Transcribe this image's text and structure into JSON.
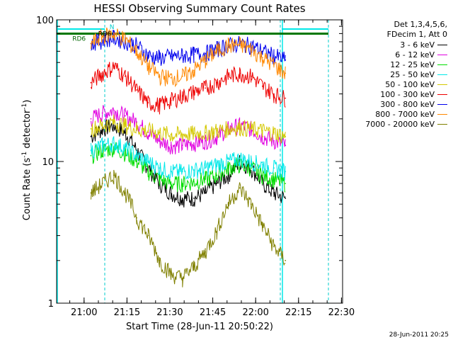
{
  "chart_data": {
    "type": "line",
    "title": "HESSI Observing Summary Count Rates",
    "xlabel": "Start Time (28-Jun-11 20:50:22)",
    "ylabel_text": "Count Rate (s",
    "ylabel_sup": "-1",
    "ylabel_tail": " detector",
    "ylabel_sup2": "-1",
    "ylabel_end": ")",
    "y_scale": "log",
    "ylim": [
      1,
      100
    ],
    "xlim_minutes": [
      0,
      100
    ],
    "x_ticks": [
      {
        "label": "21:00",
        "t": 9.6
      },
      {
        "label": "21:15",
        "t": 24.6
      },
      {
        "label": "21:30",
        "t": 39.6
      },
      {
        "label": "21:45",
        "t": 54.6
      },
      {
        "label": "22:00",
        "t": 69.6
      },
      {
        "label": "22:15",
        "t": 84.6
      },
      {
        "label": "22:30",
        "t": 99.6
      }
    ],
    "y_ticks": [
      {
        "label": "1",
        "v": 1
      },
      {
        "label": "10",
        "v": 10
      },
      {
        "label": "100",
        "v": 100
      }
    ],
    "legend_header": [
      "Det 1,3,4,5,6,",
      "FDecim 1, Att 0"
    ],
    "legend_placement": "right",
    "series": [
      {
        "name": "3 - 6 keV",
        "color": "#000000",
        "x": [
          12,
          16,
          20,
          24,
          28,
          32,
          36,
          40,
          44,
          48,
          52,
          56,
          60,
          64,
          68,
          72,
          76,
          80
        ],
        "values": [
          15,
          17,
          18,
          16,
          12,
          9,
          7,
          6,
          5.5,
          5.5,
          6,
          7,
          8,
          10,
          9,
          7,
          6,
          5.5
        ]
      },
      {
        "name": "6 - 12 keV",
        "color": "#e000e0",
        "x": [
          12,
          16,
          20,
          24,
          28,
          32,
          36,
          40,
          44,
          48,
          52,
          56,
          60,
          64,
          68,
          72,
          76,
          80
        ],
        "values": [
          20,
          22,
          23,
          21,
          19,
          16,
          14,
          13,
          13,
          13.5,
          14,
          15,
          17,
          18,
          17,
          15,
          14,
          13
        ]
      },
      {
        "name": "12 - 25 keV",
        "color": "#00dd00",
        "x": [
          12,
          16,
          20,
          24,
          28,
          32,
          36,
          40,
          44,
          48,
          52,
          56,
          60,
          64,
          68,
          72,
          76,
          80
        ],
        "values": [
          11,
          12,
          12.5,
          11.5,
          10,
          8.5,
          7.5,
          7,
          7,
          7.2,
          7.5,
          8,
          9,
          9.5,
          9,
          8,
          7.5,
          7
        ]
      },
      {
        "name": "25 - 50 keV",
        "color": "#00e8e8",
        "x": [
          12,
          16,
          20,
          24,
          28,
          32,
          36,
          40,
          44,
          48,
          52,
          56,
          60,
          64,
          68,
          72,
          76,
          80
        ],
        "values": [
          12,
          13,
          13.5,
          12.5,
          11,
          10,
          9,
          8.5,
          8.5,
          8.7,
          9,
          9.5,
          10,
          10.5,
          10,
          9.5,
          9,
          8.5
        ]
      },
      {
        "name": "50 - 100 keV",
        "color": "#d4c800",
        "x": [
          12,
          16,
          20,
          24,
          28,
          32,
          36,
          40,
          44,
          48,
          52,
          56,
          60,
          64,
          68,
          72,
          76,
          80
        ],
        "values": [
          17,
          18,
          19,
          18,
          17,
          16.5,
          16,
          15.5,
          15.5,
          15.8,
          16,
          16.5,
          17,
          17.5,
          17,
          16.5,
          16,
          15
        ]
      },
      {
        "name": "100 - 300 keV",
        "color": "#ee0000",
        "x": [
          12,
          16,
          20,
          24,
          28,
          32,
          36,
          40,
          44,
          48,
          52,
          56,
          60,
          64,
          68,
          72,
          76,
          80
        ],
        "values": [
          36,
          42,
          47,
          40,
          32,
          26,
          25,
          27,
          29,
          31,
          33,
          36,
          40,
          42,
          40,
          34,
          30,
          28
        ]
      },
      {
        "name": "300 - 800 keV",
        "color": "#0000ee",
        "x": [
          12,
          16,
          20,
          24,
          28,
          32,
          36,
          40,
          44,
          48,
          52,
          56,
          60,
          64,
          68,
          72,
          76,
          80
        ],
        "values": [
          68,
          72,
          75,
          71,
          66,
          56,
          54,
          55,
          56,
          57,
          58,
          62,
          66,
          68,
          66,
          60,
          56,
          52
        ]
      },
      {
        "name": "800 - 7000 keV",
        "color": "#ff8800",
        "x": [
          12,
          16,
          20,
          24,
          28,
          32,
          36,
          40,
          44,
          48,
          52,
          56,
          60,
          64,
          68,
          72,
          76,
          80
        ],
        "values": [
          68,
          77,
          80,
          73,
          60,
          47,
          40,
          39,
          40,
          44,
          52,
          60,
          66,
          67,
          62,
          54,
          48,
          42
        ]
      },
      {
        "name": "7000 - 20000 keV",
        "color": "#808000",
        "x": [
          12,
          16,
          20,
          24,
          28,
          32,
          36,
          40,
          44,
          48,
          52,
          56,
          60,
          64,
          68,
          72,
          76,
          80
        ],
        "values": [
          6,
          7,
          8,
          6,
          4,
          3,
          2,
          1.6,
          1.5,
          1.8,
          2.3,
          3.2,
          5,
          6.5,
          5,
          3.5,
          2.5,
          2
        ]
      }
    ],
    "annotations": [
      {
        "text": "RD6",
        "t": 14.5,
        "v": 77,
        "color": "#000000"
      },
      {
        "text": "RD6",
        "t": 5.5,
        "v": 71,
        "color": "#006600"
      },
      {
        "text": "N",
        "t": 18.5,
        "v": 86,
        "color": "#00cccc"
      }
    ],
    "grid": false
  },
  "footer": {
    "stamp": "28-Jun-2011 20:25"
  }
}
